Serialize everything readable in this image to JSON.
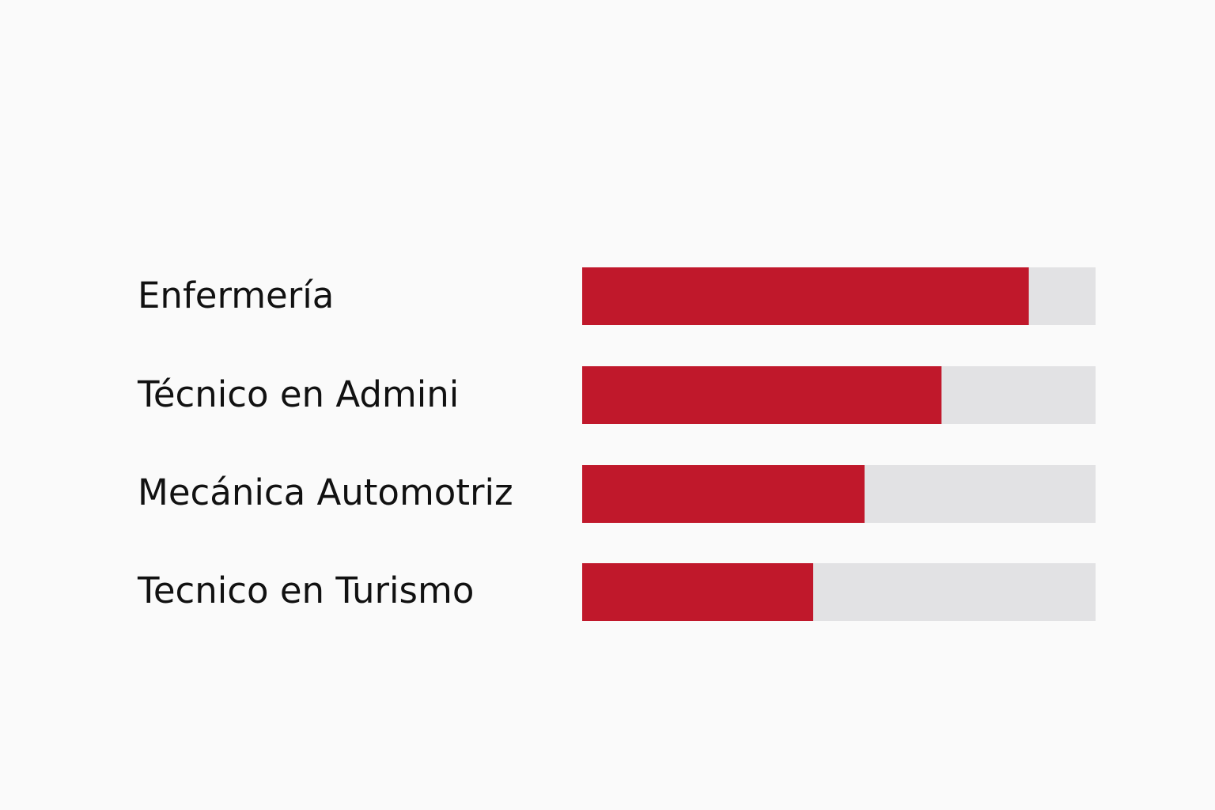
{
  "chart_data": {
    "type": "bar",
    "orientation": "horizontal",
    "categories": [
      "Enfermería",
      "Técnico en Admini",
      "Mecánica Automotriz",
      "Tecnico en Turismo"
    ],
    "values": [
      87,
      70,
      55,
      45
    ],
    "xlim": [
      0,
      100
    ],
    "title": "",
    "xlabel": "",
    "ylabel": "",
    "grid": false,
    "legend": "none",
    "colors": {
      "bar": "#c0182b",
      "track": "#e2e2e4",
      "label": "#111111",
      "background": "#fafafa"
    }
  }
}
